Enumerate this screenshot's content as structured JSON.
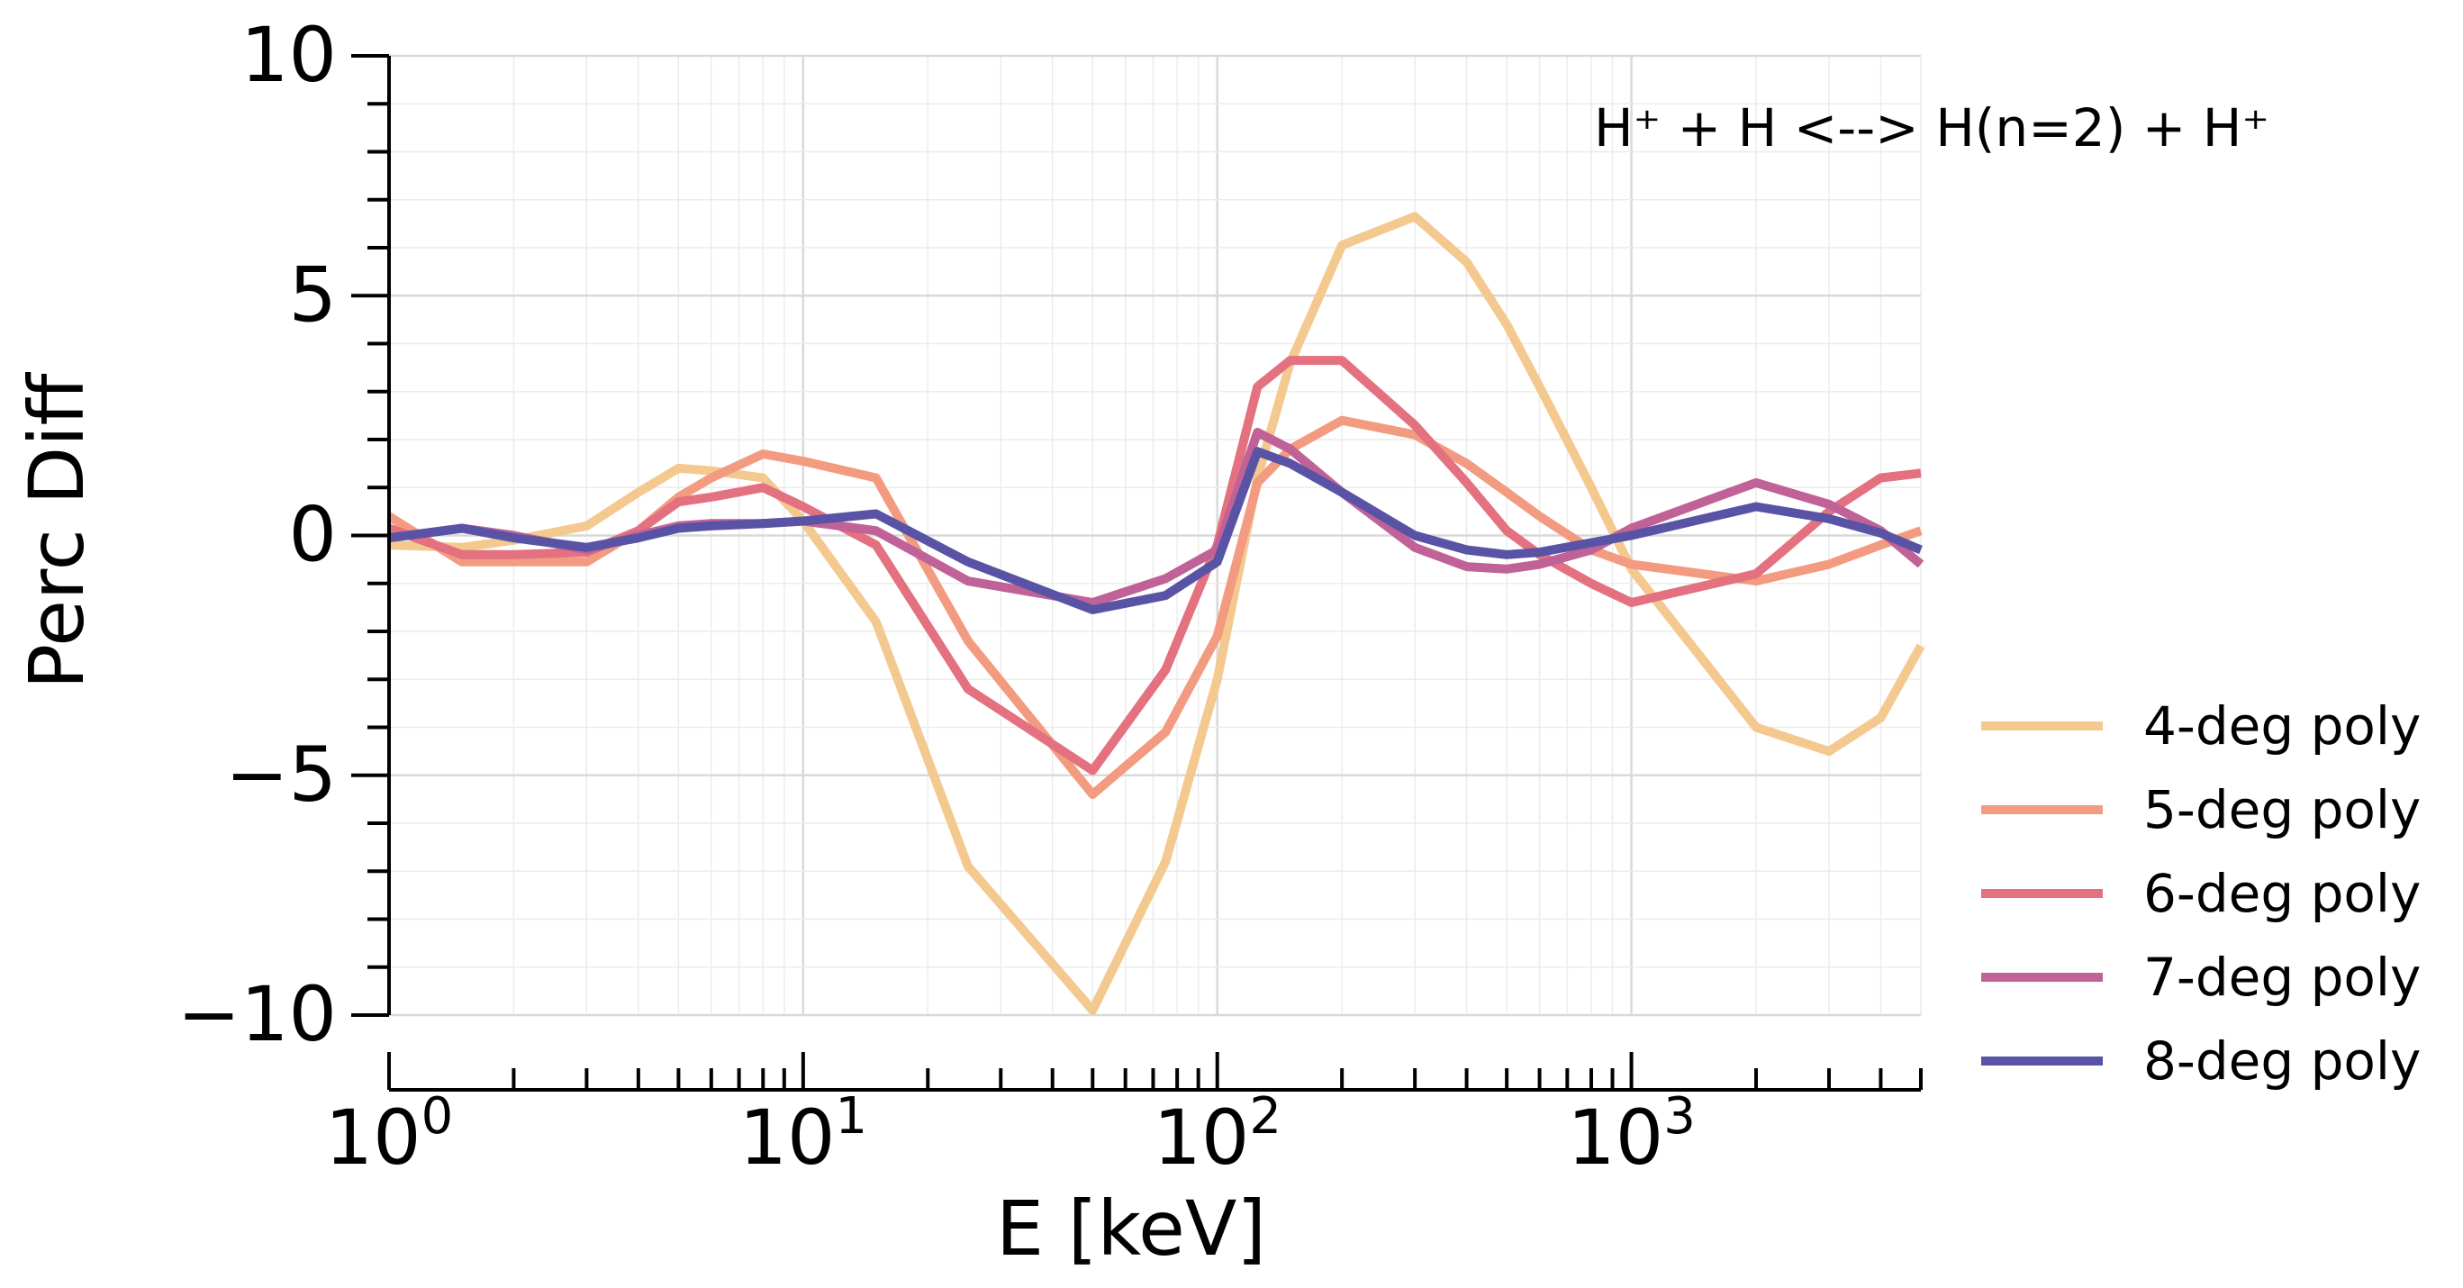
{
  "chart_data": {
    "type": "line",
    "annotation": "H⁺ + H <--> H(n=2) + H⁺",
    "xlabel": "E [keV]",
    "ylabel": "Perc Diff",
    "xscale": "log",
    "xlim": [
      1,
      5000
    ],
    "ylim": [
      -10,
      10
    ],
    "grid": true,
    "legend_position": "right",
    "x_ticks": [
      {
        "value": 1,
        "base": "10",
        "exp": "0"
      },
      {
        "value": 10,
        "base": "10",
        "exp": "1"
      },
      {
        "value": 100,
        "base": "10",
        "exp": "2"
      },
      {
        "value": 1000,
        "base": "10",
        "exp": "3"
      }
    ],
    "y_ticks": [
      {
        "value": 10,
        "label": "10"
      },
      {
        "value": 5,
        "label": "5"
      },
      {
        "value": 0,
        "label": "0"
      },
      {
        "value": -5,
        "label": "−5"
      },
      {
        "value": -10,
        "label": "−10"
      }
    ],
    "series": [
      {
        "name": "4-deg poly",
        "color": "#f4c98f",
        "x": [
          1,
          1.5,
          2,
          3,
          4,
          5,
          6,
          8,
          10,
          15,
          25,
          50,
          75,
          100,
          125,
          150,
          200,
          300,
          400,
          500,
          600,
          800,
          1000,
          2000,
          3000,
          4000,
          5000
        ],
        "y": [
          -0.2,
          -0.25,
          -0.1,
          0.2,
          0.9,
          1.4,
          1.35,
          1.2,
          0.3,
          -1.8,
          -6.9,
          -9.9,
          -6.8,
          -3.0,
          1.2,
          3.6,
          6.05,
          6.65,
          5.7,
          4.4,
          3.1,
          1.0,
          -0.7,
          -4.0,
          -4.5,
          -3.8,
          -2.3
        ]
      },
      {
        "name": "5-deg poly",
        "color": "#f39b80",
        "x": [
          1,
          1.5,
          2,
          3,
          4,
          5,
          6,
          8,
          10,
          15,
          25,
          50,
          75,
          100,
          125,
          150,
          200,
          300,
          400,
          500,
          600,
          800,
          1000,
          2000,
          3000,
          4000,
          5000
        ],
        "y": [
          0.4,
          -0.55,
          -0.55,
          -0.55,
          0.1,
          0.8,
          1.2,
          1.7,
          1.55,
          1.2,
          -2.2,
          -5.4,
          -4.1,
          -2.1,
          1.1,
          1.8,
          2.4,
          2.1,
          1.5,
          0.9,
          0.4,
          -0.3,
          -0.6,
          -0.95,
          -0.6,
          -0.2,
          0.1
        ]
      },
      {
        "name": "6-deg poly",
        "color": "#e3717f",
        "x": [
          1,
          1.5,
          2,
          3,
          4,
          5,
          6,
          8,
          10,
          15,
          25,
          50,
          75,
          100,
          125,
          150,
          200,
          300,
          400,
          500,
          600,
          800,
          1000,
          2000,
          3000,
          4000,
          5000
        ],
        "y": [
          0.15,
          -0.4,
          -0.4,
          -0.35,
          0.1,
          0.7,
          0.8,
          1.0,
          0.6,
          -0.2,
          -3.2,
          -4.9,
          -2.8,
          -0.2,
          3.1,
          3.65,
          3.65,
          2.3,
          1.1,
          0.1,
          -0.4,
          -1.0,
          -1.4,
          -0.8,
          0.5,
          1.2,
          1.3
        ]
      },
      {
        "name": "7-deg poly",
        "color": "#c06297",
        "x": [
          1,
          1.5,
          2,
          3,
          4,
          5,
          6,
          8,
          10,
          15,
          25,
          50,
          75,
          100,
          125,
          150,
          200,
          300,
          400,
          500,
          600,
          800,
          1000,
          2000,
          3000,
          4000,
          5000
        ],
        "y": [
          -0.05,
          0.15,
          0.0,
          -0.3,
          0.0,
          0.2,
          0.25,
          0.25,
          0.3,
          0.1,
          -0.95,
          -1.4,
          -0.9,
          -0.3,
          2.15,
          1.8,
          0.9,
          -0.25,
          -0.65,
          -0.7,
          -0.6,
          -0.3,
          0.15,
          1.1,
          0.65,
          0.1,
          -0.6
        ]
      },
      {
        "name": "8-deg poly",
        "color": "#5953a5",
        "x": [
          1,
          1.5,
          2,
          3,
          4,
          5,
          6,
          8,
          10,
          15,
          25,
          50,
          75,
          100,
          125,
          150,
          200,
          300,
          400,
          500,
          600,
          800,
          1000,
          2000,
          3000,
          4000,
          5000
        ],
        "y": [
          -0.05,
          0.15,
          -0.05,
          -0.25,
          -0.05,
          0.15,
          0.2,
          0.25,
          0.3,
          0.45,
          -0.55,
          -1.55,
          -1.25,
          -0.55,
          1.75,
          1.5,
          0.9,
          0.0,
          -0.3,
          -0.4,
          -0.35,
          -0.15,
          0.0,
          0.6,
          0.35,
          0.05,
          -0.3
        ]
      }
    ]
  }
}
